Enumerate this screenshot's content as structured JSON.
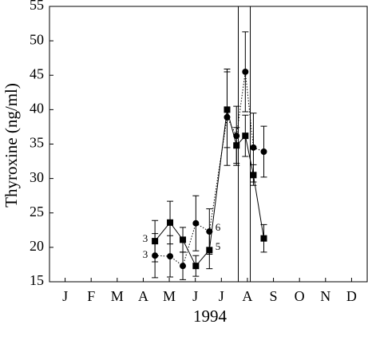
{
  "chart_data": {
    "type": "line",
    "y_label": "Thyroxine (ng/ml)",
    "x_label": "1994",
    "xlim": [
      0.4,
      12.6
    ],
    "xticks": [
      {
        "value": 1,
        "label": "J"
      },
      {
        "value": 2,
        "label": "F"
      },
      {
        "value": 3,
        "label": "M"
      },
      {
        "value": 4,
        "label": "A"
      },
      {
        "value": 5,
        "label": "M"
      },
      {
        "value": 6,
        "label": "J"
      },
      {
        "value": 7,
        "label": "J"
      },
      {
        "value": 8,
        "label": "A"
      },
      {
        "value": 9,
        "label": "S"
      },
      {
        "value": 10,
        "label": "O"
      },
      {
        "value": 11,
        "label": "N"
      },
      {
        "value": 12,
        "label": "D"
      }
    ],
    "ylim": [
      15,
      55
    ],
    "yticks": [
      15,
      20,
      25,
      30,
      35,
      40,
      45,
      50,
      55
    ],
    "vlines": [
      7.65,
      8.11
    ],
    "annotations": [
      "3",
      "3",
      "6",
      "5"
    ],
    "series": [
      {
        "marker": "square",
        "line_style": "solid",
        "color": "#000000",
        "x": [
          4.45,
          5.03,
          5.52,
          6.02,
          6.54,
          7.22,
          7.58,
          7.92,
          8.23,
          8.63
        ],
        "values": [
          20.9,
          23.6,
          21.1,
          17.3,
          19.6,
          40.0,
          34.8,
          36.2,
          30.5,
          21.3
        ],
        "errors": [
          3.0,
          3.1,
          1.8,
          1.5,
          2.7,
          5.5,
          2.6,
          3.0,
          1.5,
          2.0
        ]
      },
      {
        "marker": "circle",
        "line_style": "dotted",
        "color": "#000000",
        "x": [
          4.45,
          5.03,
          5.52,
          6.02,
          6.54,
          7.22,
          7.58,
          7.92,
          8.23,
          8.63
        ],
        "values": [
          18.8,
          18.7,
          17.3,
          23.5,
          22.3,
          38.9,
          36.2,
          45.5,
          34.5,
          33.9
        ],
        "errors": [
          3.2,
          3.0,
          2.0,
          4.0,
          3.3,
          7.0,
          4.3,
          5.8,
          5.0,
          3.7
        ]
      }
    ]
  }
}
